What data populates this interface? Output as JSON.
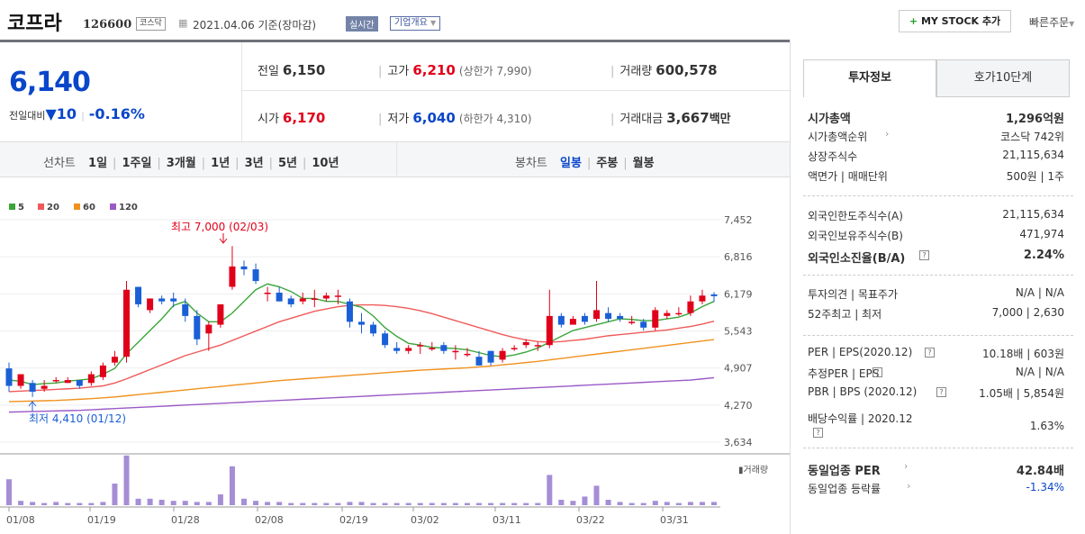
{
  "header": {
    "name": "코프라",
    "code": "126600",
    "market": "코스닥",
    "date": "2021.04.06 기준(장마감)",
    "live": "실시간",
    "corp_info": "기업개요",
    "mystock": "MY STOCK 추가",
    "quick_order": "빠른주문"
  },
  "quote": {
    "price": "6,140",
    "change_label": "전일대비",
    "change_arrow": "▼",
    "change": "10",
    "change_pct": "-0.16%",
    "prev_label": "전일",
    "prev": "6,150",
    "high_label": "고가",
    "high": "6,210",
    "upper_limit": "(상한가 7,990)",
    "volume_label": "거래량",
    "volume": "600,578",
    "open_label": "시가",
    "open": "6,170",
    "low_label": "저가",
    "low": "6,040",
    "lower_limit": "(하한가 4,310)",
    "amount_label": "거래대금",
    "amount": "3,667",
    "amount_unit": "백만"
  },
  "chart_tabs": {
    "line_label": "선차트",
    "line_items": [
      "1일",
      "1주일",
      "3개월",
      "1년",
      "3년",
      "5년",
      "10년"
    ],
    "candle_label": "봉차트",
    "candle_items": [
      "일봉",
      "주봉",
      "월봉"
    ],
    "active_candle": "일봉"
  },
  "chart_data": {
    "type": "candlestick",
    "legend": [
      {
        "name": "5",
        "color": "#3aa53a"
      },
      {
        "name": "20",
        "color": "#f05a5a"
      },
      {
        "name": "60",
        "color": "#f0911e"
      },
      {
        "name": "120",
        "color": "#9b59c6"
      }
    ],
    "y_ticks": [
      "7,452",
      "6,816",
      "6,179",
      "5,543",
      "4,907",
      "4,270",
      "3,634"
    ],
    "x_ticks": [
      "01/08",
      "01/19",
      "01/28",
      "02/08",
      "02/19",
      "03/02",
      "03/11",
      "03/22",
      "03/31"
    ],
    "max_annotation": "최고 7,000 (02/03)",
    "min_annotation": "최저 4,410 (01/12)",
    "volume_label": "거래량",
    "ylim": [
      3634,
      7452
    ],
    "candles": [
      [
        4900,
        5000,
        4500,
        4600
      ],
      [
        4600,
        4800,
        4550,
        4800
      ],
      [
        4650,
        4700,
        4410,
        4500
      ],
      [
        4550,
        4700,
        4500,
        4600
      ],
      [
        4700,
        4750,
        4650,
        4700
      ],
      [
        4650,
        4750,
        4650,
        4700
      ],
      [
        4700,
        4700,
        4550,
        4600
      ],
      [
        4650,
        4850,
        4600,
        4800
      ],
      [
        4750,
        5000,
        4700,
        4950
      ],
      [
        5000,
        5200,
        4950,
        5100
      ],
      [
        5100,
        6400,
        5000,
        6250
      ],
      [
        6300,
        6300,
        5950,
        6000
      ],
      [
        5900,
        6100,
        5850,
        6100
      ],
      [
        6100,
        6150,
        6000,
        6050
      ],
      [
        6100,
        6200,
        5950,
        6050
      ],
      [
        6000,
        6100,
        5700,
        5800
      ],
      [
        5800,
        5900,
        5300,
        5400
      ],
      [
        5500,
        5700,
        5200,
        5650
      ],
      [
        5650,
        6000,
        5600,
        6000
      ],
      [
        6300,
        7000,
        6250,
        6650
      ],
      [
        6650,
        6750,
        6500,
        6600
      ],
      [
        6600,
        6700,
        6350,
        6400
      ],
      [
        6200,
        6300,
        6050,
        6200
      ],
      [
        6200,
        6300,
        6050,
        6050
      ],
      [
        6100,
        6150,
        5950,
        6000
      ],
      [
        6050,
        6200,
        6000,
        6100
      ],
      [
        6100,
        6250,
        5950,
        6100
      ],
      [
        6100,
        6200,
        6050,
        6150
      ],
      [
        6150,
        6250,
        6000,
        6150
      ],
      [
        6050,
        6100,
        5600,
        5700
      ],
      [
        5700,
        5850,
        5500,
        5650
      ],
      [
        5650,
        5700,
        5450,
        5500
      ],
      [
        5500,
        5550,
        5250,
        5300
      ],
      [
        5250,
        5350,
        5150,
        5200
      ],
      [
        5200,
        5300,
        5150,
        5250
      ],
      [
        5300,
        5350,
        5150,
        5300
      ],
      [
        5250,
        5350,
        5200,
        5250
      ],
      [
        5300,
        5350,
        5150,
        5200
      ],
      [
        5200,
        5300,
        5050,
        5200
      ],
      [
        5150,
        5250,
        5100,
        5150
      ],
      [
        5100,
        5200,
        4950,
        4950
      ],
      [
        5200,
        5200,
        4950,
        5000
      ],
      [
        5050,
        5250,
        5000,
        5200
      ],
      [
        5250,
        5300,
        5200,
        5250
      ],
      [
        5300,
        5400,
        5250,
        5350
      ],
      [
        5300,
        5350,
        5200,
        5300
      ],
      [
        5300,
        6250,
        5250,
        5800
      ],
      [
        5800,
        5850,
        5600,
        5650
      ],
      [
        5650,
        5800,
        5650,
        5750
      ],
      [
        5800,
        5850,
        5650,
        5700
      ],
      [
        5750,
        6400,
        5700,
        5900
      ],
      [
        5850,
        5950,
        5700,
        5750
      ],
      [
        5800,
        5850,
        5700,
        5750
      ],
      [
        5700,
        5800,
        5650,
        5700
      ],
      [
        5700,
        5750,
        5550,
        5600
      ],
      [
        5600,
        5950,
        5550,
        5900
      ],
      [
        5800,
        5900,
        5750,
        5850
      ],
      [
        5850,
        5950,
        5800,
        5850
      ],
      [
        5850,
        6150,
        5800,
        6050
      ],
      [
        6050,
        6250,
        6000,
        6150
      ],
      [
        6170,
        6210,
        6040,
        6140
      ]
    ],
    "volumes": [
      [
        0,
        24
      ],
      [
        1,
        4
      ],
      [
        2,
        3
      ],
      [
        3,
        2
      ],
      [
        4,
        3
      ],
      [
        5,
        2
      ],
      [
        6,
        2
      ],
      [
        7,
        2
      ],
      [
        8,
        3
      ],
      [
        9,
        20
      ],
      [
        10,
        46
      ],
      [
        11,
        6
      ],
      [
        12,
        6
      ],
      [
        13,
        5
      ],
      [
        14,
        4
      ],
      [
        15,
        4
      ],
      [
        16,
        3
      ],
      [
        17,
        3
      ],
      [
        18,
        10
      ],
      [
        19,
        36
      ],
      [
        20,
        6
      ],
      [
        21,
        4
      ],
      [
        22,
        3
      ],
      [
        23,
        3
      ],
      [
        24,
        2
      ],
      [
        25,
        2
      ],
      [
        26,
        2
      ],
      [
        27,
        2
      ],
      [
        28,
        2
      ],
      [
        29,
        3
      ],
      [
        30,
        3
      ],
      [
        31,
        2
      ],
      [
        32,
        2
      ],
      [
        33,
        2
      ],
      [
        34,
        2
      ],
      [
        35,
        2
      ],
      [
        36,
        2
      ],
      [
        37,
        2
      ],
      [
        38,
        2
      ],
      [
        39,
        2
      ],
      [
        40,
        2
      ],
      [
        41,
        2
      ],
      [
        42,
        2
      ],
      [
        43,
        2
      ],
      [
        44,
        2
      ],
      [
        45,
        2
      ],
      [
        46,
        28
      ],
      [
        47,
        5
      ],
      [
        48,
        4
      ],
      [
        49,
        8
      ],
      [
        50,
        18
      ],
      [
        51,
        5
      ],
      [
        52,
        3
      ],
      [
        53,
        2
      ],
      [
        54,
        2
      ],
      [
        55,
        4
      ],
      [
        56,
        3
      ],
      [
        57,
        2
      ],
      [
        58,
        3
      ],
      [
        59,
        3
      ],
      [
        60,
        3
      ]
    ],
    "ma5": [
      4700,
      4680,
      4620,
      4640,
      4650,
      4680,
      4700,
      4720,
      4800,
      4900,
      5150,
      5350,
      5550,
      5750,
      5980,
      6050,
      5850,
      5700,
      5700,
      5850,
      6050,
      6250,
      6350,
      6300,
      6220,
      6100,
      6100,
      6050,
      6050,
      6000,
      5950,
      5800,
      5600,
      5450,
      5330,
      5300,
      5260,
      5250,
      5240,
      5220,
      5170,
      5120,
      5100,
      5130,
      5180,
      5250,
      5350,
      5450,
      5550,
      5600,
      5650,
      5700,
      5750,
      5740,
      5720,
      5720,
      5750,
      5780,
      5850,
      5960,
      6050
    ],
    "ma20": [
      4500,
      4510,
      4520,
      4530,
      4540,
      4550,
      4560,
      4580,
      4600,
      4650,
      4720,
      4800,
      4880,
      4960,
      5040,
      5120,
      5180,
      5240,
      5300,
      5380,
      5460,
      5540,
      5620,
      5700,
      5760,
      5820,
      5880,
      5920,
      5960,
      5980,
      5990,
      5990,
      5980,
      5960,
      5930,
      5890,
      5840,
      5780,
      5720,
      5660,
      5600,
      5540,
      5480,
      5430,
      5390,
      5360,
      5350,
      5360,
      5380,
      5400,
      5430,
      5460,
      5480,
      5500,
      5520,
      5540,
      5560,
      5590,
      5620,
      5660,
      5710
    ],
    "ma60": [
      4330,
      4335,
      4340,
      4345,
      4350,
      4360,
      4370,
      4380,
      4395,
      4410,
      4430,
      4450,
      4470,
      4490,
      4510,
      4530,
      4550,
      4570,
      4590,
      4610,
      4630,
      4650,
      4670,
      4690,
      4705,
      4720,
      4735,
      4750,
      4765,
      4780,
      4795,
      4810,
      4825,
      4840,
      4855,
      4870,
      4880,
      4890,
      4900,
      4910,
      4925,
      4940,
      4960,
      4980,
      5000,
      5020,
      5045,
      5070,
      5095,
      5120,
      5145,
      5170,
      5195,
      5220,
      5245,
      5270,
      5295,
      5320,
      5345,
      5370,
      5395
    ],
    "ma120": [
      4150,
      4155,
      4160,
      4165,
      4170,
      4175,
      4180,
      4190,
      4200,
      4210,
      4220,
      4230,
      4240,
      4250,
      4260,
      4270,
      4280,
      4290,
      4300,
      4310,
      4320,
      4330,
      4340,
      4350,
      4360,
      4370,
      4380,
      4390,
      4400,
      4410,
      4420,
      4430,
      4440,
      4450,
      4460,
      4470,
      4480,
      4490,
      4500,
      4510,
      4520,
      4530,
      4540,
      4550,
      4560,
      4570,
      4580,
      4590,
      4600,
      4610,
      4620,
      4630,
      4640,
      4650,
      4660,
      4670,
      4680,
      4690,
      4700,
      4720,
      4740
    ]
  },
  "invest": {
    "tab1": "투자정보",
    "tab2": "호가10단계",
    "rows": [
      {
        "label": "시가총액",
        "value": "1,296억원",
        "bold": true
      },
      {
        "label": "시가총액순위",
        "value": "코스닥 742위"
      },
      {
        "label": "상장주식수",
        "value": "21,115,634"
      },
      {
        "label": "액면가 | 매매단위",
        "value": "500원 | 1주"
      },
      {
        "label": "외국인한도주식수(A)",
        "value": "21,115,634"
      },
      {
        "label": "외국인보유주식수(B)",
        "value": "471,974"
      },
      {
        "label": "외국인소진율(B/A)",
        "value": "2.24%",
        "bold": true
      },
      {
        "label": "투자의견 | 목표주가",
        "value": "N/A | N/A"
      },
      {
        "label": "52주최고 | 최저",
        "value": "7,000 | 2,630"
      },
      {
        "label": "PER | EPS(2020.12)",
        "value": "10.18배 | 603원"
      },
      {
        "label": "추정PER | EPS",
        "value": "N/A | N/A"
      },
      {
        "label": "PBR | BPS (2020.12)",
        "value": "1.05배 | 5,854원"
      },
      {
        "label": "배당수익률 | 2020.12",
        "value": "1.63%"
      },
      {
        "label": "동일업종 PER",
        "value": "42.84배",
        "bold": true
      },
      {
        "label": "동일업종 등락률",
        "value": "-1.34%"
      }
    ]
  }
}
